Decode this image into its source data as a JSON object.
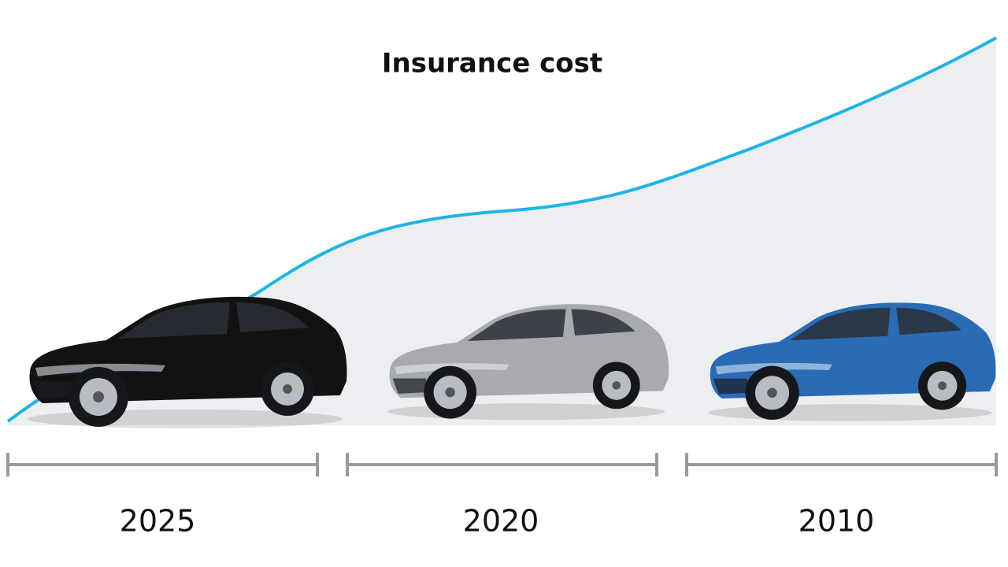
{
  "title": "Insurance cost",
  "periods": [
    "2025",
    "2020",
    "2010"
  ]
}
